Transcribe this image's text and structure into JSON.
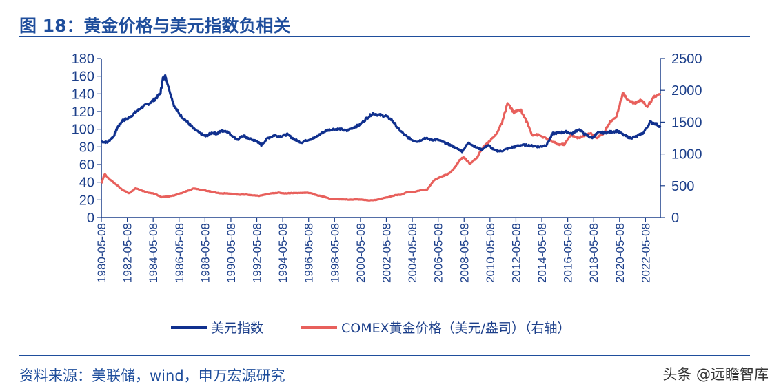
{
  "header": {
    "title": "图 18：黄金价格与美元指数负相关"
  },
  "footer": {
    "source": "资料来源：美联储，wind，申万宏源研究",
    "watermark": "头条 @远瞻智库"
  },
  "colors": {
    "title": "#1f4e9c",
    "axis": "#1c3f8a",
    "usd_index": "#10308e",
    "gold": "#e8605c"
  },
  "chart_data": {
    "type": "line",
    "title": "",
    "x_tick_labels": [
      "1980-05-08",
      "1982-05-08",
      "1984-05-08",
      "1986-05-08",
      "1988-05-08",
      "1990-05-08",
      "1992-05-08",
      "1994-05-08",
      "1996-05-08",
      "1998-05-08",
      "2000-05-08",
      "2002-05-08",
      "2004-05-08",
      "2006-05-08",
      "2008-05-08",
      "2010-05-08",
      "2012-05-08",
      "2014-05-08",
      "2016-05-08",
      "2018-05-08",
      "2020-05-08",
      "2022-05-08"
    ],
    "x_range": [
      1980.35,
      2023.5
    ],
    "y_left": {
      "min": 0,
      "max": 180,
      "ticks": [
        0,
        20,
        40,
        60,
        80,
        100,
        120,
        140,
        160,
        180
      ]
    },
    "y_right": {
      "min": 0,
      "max": 2500,
      "ticks": [
        0,
        500,
        1000,
        1500,
        2000,
        2500
      ]
    },
    "grid": false,
    "legend_position": "bottom",
    "series": [
      {
        "name": "美元指数",
        "axis": "left",
        "color": "#10308e",
        "x": [
          1980.35,
          1980.8,
          1981.3,
          1981.6,
          1982.0,
          1982.4,
          1982.9,
          1983.4,
          1983.9,
          1984.4,
          1984.9,
          1985.1,
          1985.3,
          1985.6,
          1986.0,
          1986.5,
          1987.0,
          1987.5,
          1988.0,
          1988.4,
          1988.9,
          1989.3,
          1989.6,
          1990.0,
          1990.5,
          1990.9,
          1991.3,
          1991.6,
          1992.0,
          1992.4,
          1992.7,
          1993.2,
          1993.7,
          1994.2,
          1994.7,
          1995.3,
          1995.8,
          1996.3,
          1996.8,
          1997.3,
          1997.8,
          1998.3,
          1998.8,
          1999.3,
          1999.8,
          2000.3,
          2000.8,
          2001.3,
          2001.8,
          2002.3,
          2002.8,
          2003.3,
          2003.8,
          2004.3,
          2004.8,
          2005.3,
          2005.8,
          2006.3,
          2006.8,
          2007.3,
          2007.8,
          2008.2,
          2008.7,
          2009.2,
          2009.7,
          2010.2,
          2010.7,
          2011.2,
          2011.7,
          2012.2,
          2012.7,
          2013.2,
          2013.7,
          2014.2,
          2014.7,
          2015.2,
          2015.7,
          2016.2,
          2016.7,
          2017.2,
          2017.7,
          2018.2,
          2018.7,
          2019.2,
          2019.7,
          2020.2,
          2020.7,
          2021.2,
          2021.7,
          2022.2,
          2022.7,
          2023.2,
          2023.5
        ],
        "y": [
          86,
          85,
          92,
          102,
          110,
          112,
          118,
          124,
          128,
          133,
          140,
          157,
          160,
          145,
          125,
          115,
          108,
          100,
          95,
          92,
          96,
          95,
          98,
          98,
          92,
          88,
          93,
          90,
          88,
          86,
          82,
          90,
          93,
          92,
          94,
          88,
          85,
          88,
          90,
          95,
          99,
          100,
          100,
          98,
          102,
          105,
          112,
          118,
          116,
          115,
          110,
          100,
          93,
          88,
          86,
          90,
          88,
          88,
          85,
          82,
          78,
          75,
          85,
          80,
          77,
          82,
          76,
          75,
          78,
          80,
          82,
          82,
          81,
          80,
          82,
          95,
          96,
          97,
          95,
          100,
          94,
          90,
          96,
          96,
          97,
          98,
          93,
          90,
          92,
          96,
          108,
          106,
          102
        ]
      },
      {
        "name": "COMEX黄金价格（美元/盎司）（右轴）",
        "axis": "right",
        "color": "#e8605c",
        "x": [
          1980.35,
          1980.6,
          1981.0,
          1981.5,
          1982.0,
          1982.5,
          1983.0,
          1983.5,
          1984.0,
          1984.5,
          1985.0,
          1985.5,
          1986.0,
          1986.5,
          1987.0,
          1987.5,
          1988.0,
          1988.5,
          1989.0,
          1989.5,
          1990.0,
          1990.5,
          1991.0,
          1991.5,
          1992.0,
          1992.5,
          1993.0,
          1993.5,
          1994.0,
          1994.5,
          1995.0,
          1995.5,
          1996.0,
          1996.5,
          1997.0,
          1997.5,
          1998.0,
          1998.5,
          1999.0,
          1999.5,
          2000.0,
          2000.5,
          2001.0,
          2001.5,
          2002.0,
          2002.5,
          2003.0,
          2003.5,
          2004.0,
          2004.5,
          2005.0,
          2005.5,
          2006.0,
          2006.5,
          2007.0,
          2007.5,
          2008.0,
          2008.3,
          2008.8,
          2009.3,
          2009.8,
          2010.3,
          2010.8,
          2011.3,
          2011.7,
          2012.2,
          2012.7,
          2013.2,
          2013.6,
          2014.1,
          2014.6,
          2015.1,
          2015.6,
          2016.1,
          2016.6,
          2017.1,
          2017.6,
          2018.1,
          2018.6,
          2019.1,
          2019.6,
          2020.1,
          2020.6,
          2021.0,
          2021.5,
          2022.0,
          2022.5,
          2023.0,
          2023.5
        ],
        "y": [
          540,
          680,
          600,
          520,
          430,
          380,
          460,
          420,
          390,
          370,
          320,
          330,
          350,
          380,
          420,
          460,
          440,
          420,
          400,
          380,
          380,
          370,
          360,
          360,
          350,
          340,
          360,
          380,
          390,
          380,
          385,
          385,
          390,
          385,
          350,
          330,
          295,
          290,
          285,
          280,
          285,
          280,
          270,
          275,
          300,
          320,
          350,
          360,
          400,
          400,
          430,
          440,
          580,
          640,
          670,
          750,
          900,
          950,
          850,
          930,
          1100,
          1200,
          1300,
          1500,
          1800,
          1650,
          1700,
          1500,
          1300,
          1300,
          1250,
          1200,
          1150,
          1150,
          1300,
          1250,
          1280,
          1330,
          1250,
          1320,
          1500,
          1580,
          1950,
          1850,
          1800,
          1850,
          1750,
          1900,
          1950
        ]
      }
    ]
  }
}
